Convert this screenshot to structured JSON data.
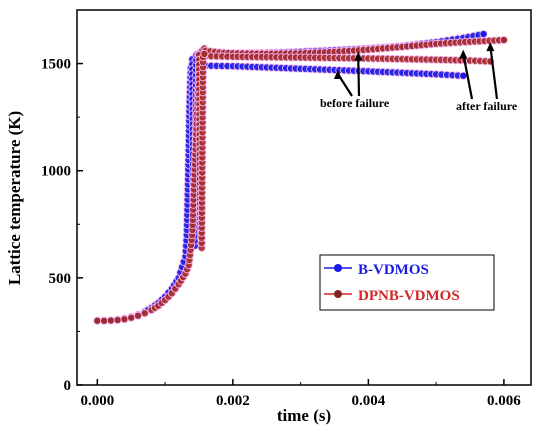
{
  "chart_data": {
    "type": "scatter",
    "xlabel": "time (s)",
    "ylabel": "Lattice temperature (K)",
    "xlim": [
      -0.0003,
      0.0064
    ],
    "ylim": [
      0,
      1750
    ],
    "xticks": [
      0.0,
      0.002,
      0.004,
      0.006
    ],
    "xtick_labels": [
      "0.000",
      "0.002",
      "0.004",
      "0.006"
    ],
    "yticks": [
      0,
      500,
      1000,
      1500
    ],
    "ytick_labels": [
      "0",
      "500",
      "1000",
      "1500"
    ],
    "grid": false,
    "legend_position": "lower-right",
    "series": [
      {
        "name": "B-VDMOS",
        "color": "#1a1ae6",
        "marker": "circle",
        "traces": [
          {
            "x": [
              0,
              0.0001,
              0.0002,
              0.0003,
              0.0004,
              0.0005,
              0.0006,
              0.0007,
              0.0008,
              0.0009,
              0.001,
              0.0011,
              0.0012,
              0.0013,
              0.00132,
              0.00134,
              0.00136,
              0.00138,
              0.0014,
              0.00142,
              0.00144,
              0.00146,
              0.0015,
              0.0016,
              0.002,
              0.0025,
              0.003,
              0.0035,
              0.004,
              0.0045,
              0.005,
              0.0054
            ],
            "y": [
              300,
              300,
              302,
              305,
              310,
              318,
              328,
              342,
              360,
              383,
              412,
              450,
              500,
              600,
              700,
              960,
              1300,
              1480,
              1500,
              1505,
              1500,
              1495,
              1490,
              1490,
              1488,
              1482,
              1476,
              1470,
              1464,
              1457,
              1450,
              1443
            ]
          },
          {
            "x": [
              0.0016,
              0.002,
              0.0025,
              0.003,
              0.0035,
              0.004,
              0.0045,
              0.005,
              0.0054,
              0.0057
            ],
            "y": [
              1545,
              1548,
              1550,
              1555,
              1562,
              1570,
              1582,
              1600,
              1620,
              1638
            ]
          },
          {
            "x": [
              0.0014,
              0.00142,
              0.00144,
              0.00146,
              0.00148,
              0.0015
            ],
            "y": [
              1520,
              750,
              650,
              1540,
              1545,
              1545
            ]
          }
        ]
      },
      {
        "name": "DPNB-VDMOS",
        "color": "#d02828",
        "marker": "circle",
        "traces": [
          {
            "x": [
              0,
              0.0001,
              0.0002,
              0.0003,
              0.0004,
              0.0005,
              0.0006,
              0.0007,
              0.0008,
              0.0009,
              0.001,
              0.0011,
              0.0012,
              0.0013,
              0.00135,
              0.0014,
              0.00145,
              0.0015,
              0.00152,
              0.00155,
              0.00158,
              0.0016,
              0.0018,
              0.002,
              0.0025,
              0.003,
              0.0035,
              0.004,
              0.0045,
              0.005,
              0.0055,
              0.006
            ],
            "y": [
              300,
              300,
              301,
              303,
              307,
              314,
              323,
              335,
              350,
              370,
              396,
              428,
              470,
              520,
              560,
              700,
              1100,
              1480,
              1550,
              1560,
              1570,
              1560,
              1552,
              1548,
              1546,
              1548,
              1555,
              1565,
              1578,
              1592,
              1602,
              1610
            ]
          },
          {
            "x": [
              0.0016,
              0.002,
              0.0025,
              0.003,
              0.0035,
              0.004,
              0.0045,
              0.005,
              0.0055,
              0.0058
            ],
            "y": [
              1535,
              1532,
              1530,
              1528,
              1526,
              1524,
              1521,
              1518,
              1514,
              1510
            ]
          },
          {
            "x": [
              0.0015,
              0.00152,
              0.00154,
              0.00156,
              0.00158
            ],
            "y": [
              1540,
              730,
              640,
              1530,
              1545
            ]
          }
        ]
      }
    ],
    "annotations": [
      {
        "text": "before failure",
        "targets": [
          [
            0.00355,
            1470
          ],
          [
            0.00385,
            1555
          ]
        ]
      },
      {
        "text": "after failure",
        "targets": [
          [
            0.0054,
            1565
          ],
          [
            0.0058,
            1600
          ]
        ]
      }
    ]
  }
}
